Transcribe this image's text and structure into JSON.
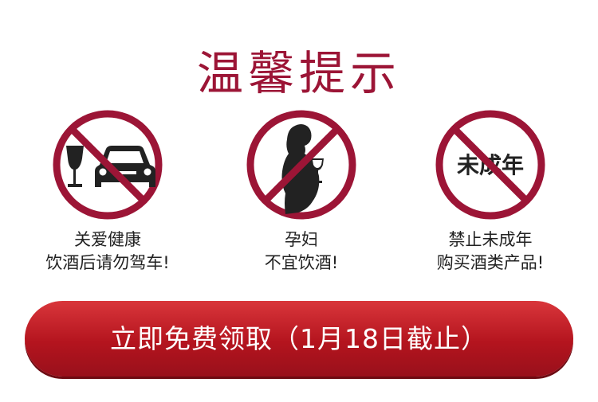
{
  "title": "温馨提示",
  "notices": [
    {
      "icon": "no-drink-driving-icon",
      "line1": "关爱健康",
      "line2": "饮酒后请勿驾车!"
    },
    {
      "icon": "no-pregnant-drinking-icon",
      "line1": "孕妇",
      "line2": "不宜饮酒!"
    },
    {
      "icon": "no-minors-icon",
      "icon_text": "未成年",
      "line1": "禁止未成年",
      "line2": "购买酒类产品!"
    }
  ],
  "cta": {
    "label": "立即免费领取（1月18日截止）"
  },
  "colors": {
    "sign_red": "#9c1536",
    "button_red": "#c41e26",
    "glyph": "#222222"
  }
}
